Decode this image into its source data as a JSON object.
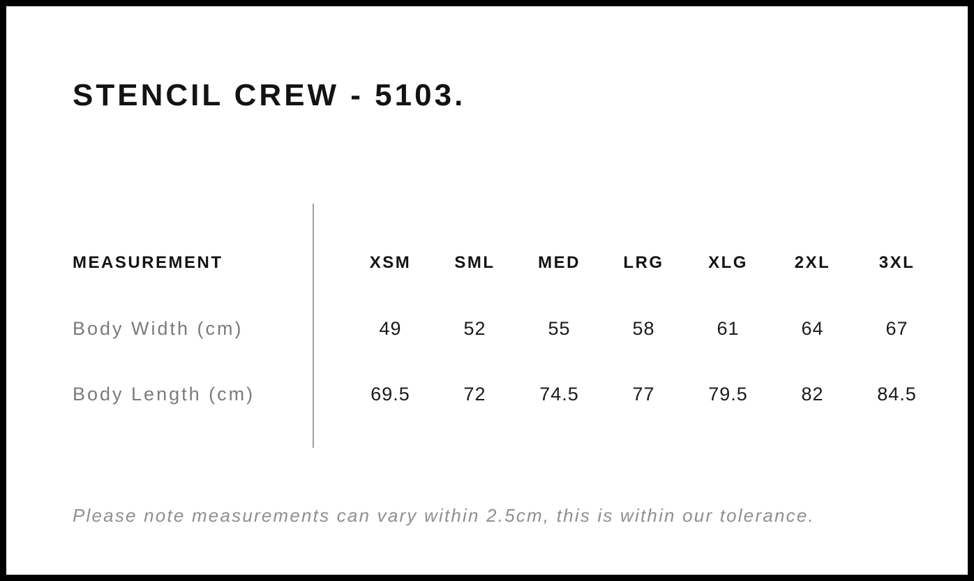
{
  "title": "STENCIL CREW - 5103.",
  "size_chart": {
    "measurement_header": "MEASUREMENT",
    "sizes": [
      "XSM",
      "SML",
      "MED",
      "LRG",
      "XLG",
      "2XL",
      "3XL"
    ],
    "rows": [
      {
        "label": "Body Width (cm)",
        "values": [
          "49",
          "52",
          "55",
          "58",
          "61",
          "64",
          "67"
        ]
      },
      {
        "label": "Body Length (cm)",
        "values": [
          "69.5",
          "72",
          "74.5",
          "77",
          "79.5",
          "82",
          "84.5"
        ]
      }
    ]
  },
  "note": "Please note measurements can vary within 2.5cm, this is within our tolerance.",
  "colors": {
    "background": "#ffffff",
    "frame_border": "#000000",
    "text_primary": "#131313",
    "row_label_gray": "#7b7b7b",
    "note_gray": "#8f8f8f",
    "divider_gray": "#a0a0a0"
  }
}
